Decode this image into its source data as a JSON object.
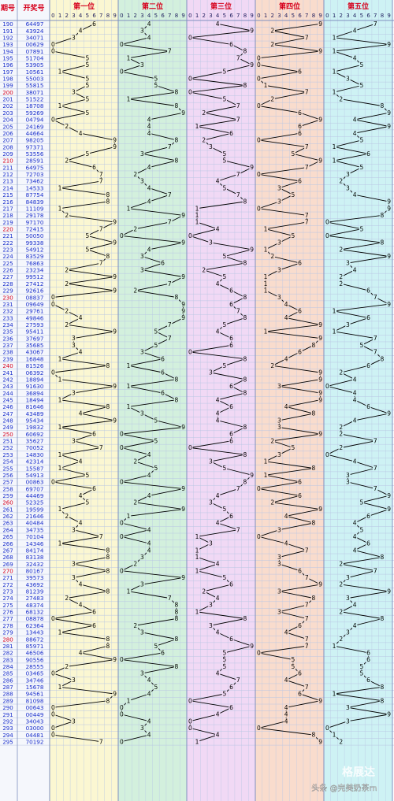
{
  "header": {
    "issue_label": "期号",
    "draw_label": "开奖号",
    "position_titles": [
      "第一位",
      "第二位",
      "第三位",
      "第四位",
      "第五位"
    ]
  },
  "watermark": {
    "logo_text": "格展达",
    "credit": "头条 @完美奶茶rn"
  },
  "colors": {
    "panel_backgrounds": [
      "#fbf7d2",
      "#d3f0dd",
      "#f1d9f5",
      "#f9dccd",
      "#cef2f4"
    ],
    "issue_text": "#1a2fcc",
    "issue_highlight": "#d6001c",
    "header_text": "#d6001c",
    "grid_line": "#b9c6e4",
    "separator": "#8090c0",
    "polyline": "#000000"
  },
  "chart_data": {
    "type": "line",
    "digit_ticks": [
      "0",
      "1",
      "2",
      "3",
      "4",
      "5",
      "6",
      "7",
      "8",
      "9"
    ],
    "highlighted_issues": [
      200,
      210,
      220,
      230,
      240,
      250,
      260,
      270,
      280
    ],
    "rows": [
      {
        "issue": 190,
        "draw": "64497"
      },
      {
        "issue": 191,
        "draw": "43924"
      },
      {
        "issue": 192,
        "draw": "34071"
      },
      {
        "issue": 193,
        "draw": "00629"
      },
      {
        "issue": 194,
        "draw": "07891"
      },
      {
        "issue": 195,
        "draw": "51704"
      },
      {
        "issue": 196,
        "draw": "53905"
      },
      {
        "issue": 197,
        "draw": "10561"
      },
      {
        "issue": 198,
        "draw": "55003"
      },
      {
        "issue": 199,
        "draw": "55815"
      },
      {
        "issue": 200,
        "draw": "38071"
      },
      {
        "issue": 201,
        "draw": "51522"
      },
      {
        "issue": 202,
        "draw": "18708"
      },
      {
        "issue": 203,
        "draw": "59269"
      },
      {
        "issue": 204,
        "draw": "04794"
      },
      {
        "issue": 205,
        "draw": "24169"
      },
      {
        "issue": 206,
        "draw": "44664"
      },
      {
        "issue": 207,
        "draw": "98205"
      },
      {
        "issue": 208,
        "draw": "97371"
      },
      {
        "issue": 209,
        "draw": "53556"
      },
      {
        "issue": 210,
        "draw": "28591"
      },
      {
        "issue": 211,
        "draw": "64975"
      },
      {
        "issue": 212,
        "draw": "72703"
      },
      {
        "issue": 213,
        "draw": "73462"
      },
      {
        "issue": 214,
        "draw": "14533"
      },
      {
        "issue": 215,
        "draw": "87754"
      },
      {
        "issue": 216,
        "draw": "84839"
      },
      {
        "issue": 217,
        "draw": "11109"
      },
      {
        "issue": 218,
        "draw": "29178"
      },
      {
        "issue": 219,
        "draw": "97170"
      },
      {
        "issue": 220,
        "draw": "72415"
      },
      {
        "issue": 221,
        "draw": "50050"
      },
      {
        "issue": 222,
        "draw": "99338"
      },
      {
        "issue": 223,
        "draw": "54912"
      },
      {
        "issue": 224,
        "draw": "83529"
      },
      {
        "issue": 225,
        "draw": "76863"
      },
      {
        "issue": 226,
        "draw": "23234"
      },
      {
        "issue": 227,
        "draw": "99512"
      },
      {
        "issue": 228,
        "draw": "27412"
      },
      {
        "issue": 229,
        "draw": "92616"
      },
      {
        "issue": 230,
        "draw": "08837"
      },
      {
        "issue": 231,
        "draw": "09649"
      },
      {
        "issue": 232,
        "draw": "29761"
      },
      {
        "issue": 233,
        "draw": "49846"
      },
      {
        "issue": 234,
        "draw": "27593"
      },
      {
        "issue": 235,
        "draw": "95411"
      },
      {
        "issue": 236,
        "draw": "37697"
      },
      {
        "issue": 237,
        "draw": "35685"
      },
      {
        "issue": 238,
        "draw": "43067"
      },
      {
        "issue": 239,
        "draw": "16848"
      },
      {
        "issue": 240,
        "draw": "81526"
      },
      {
        "issue": 241,
        "draw": "06392"
      },
      {
        "issue": 242,
        "draw": "18894"
      },
      {
        "issue": 243,
        "draw": "91630"
      },
      {
        "issue": 244,
        "draw": "36894"
      },
      {
        "issue": 245,
        "draw": "18494"
      },
      {
        "issue": 246,
        "draw": "81646"
      },
      {
        "issue": 247,
        "draw": "43489"
      },
      {
        "issue": 248,
        "draw": "95434"
      },
      {
        "issue": 249,
        "draw": "19832"
      },
      {
        "issue": 250,
        "draw": "60692"
      },
      {
        "issue": 251,
        "draw": "35627"
      },
      {
        "issue": 252,
        "draw": "70052"
      },
      {
        "issue": 253,
        "draw": "14830"
      },
      {
        "issue": 254,
        "draw": "42314"
      },
      {
        "issue": 255,
        "draw": "15587"
      },
      {
        "issue": 256,
        "draw": "54913"
      },
      {
        "issue": 257,
        "draw": "00863"
      },
      {
        "issue": 258,
        "draw": "69707"
      },
      {
        "issue": 259,
        "draw": "44469"
      },
      {
        "issue": 260,
        "draw": "52325"
      },
      {
        "issue": 261,
        "draw": "19599"
      },
      {
        "issue": 262,
        "draw": "21646"
      },
      {
        "issue": 263,
        "draw": "40484"
      },
      {
        "issue": 264,
        "draw": "34735"
      },
      {
        "issue": 265,
        "draw": "70104"
      },
      {
        "issue": 266,
        "draw": "14346"
      },
      {
        "issue": 267,
        "draw": "84174"
      },
      {
        "issue": 268,
        "draw": "83138"
      },
      {
        "issue": 269,
        "draw": "32432"
      },
      {
        "issue": 270,
        "draw": "80167"
      },
      {
        "issue": 271,
        "draw": "39573"
      },
      {
        "issue": 272,
        "draw": "43692"
      },
      {
        "issue": 273,
        "draw": "81239"
      },
      {
        "issue": 274,
        "draw": "27483"
      },
      {
        "issue": 275,
        "draw": "48374"
      },
      {
        "issue": 276,
        "draw": "68132"
      },
      {
        "issue": 277,
        "draw": "08878"
      },
      {
        "issue": 278,
        "draw": "62364"
      },
      {
        "issue": 279,
        "draw": "13443"
      },
      {
        "issue": 280,
        "draw": "88672"
      },
      {
        "issue": 281,
        "draw": "85971"
      },
      {
        "issue": 282,
        "draw": "46506"
      },
      {
        "issue": 283,
        "draw": "90556"
      },
      {
        "issue": 284,
        "draw": "28555"
      },
      {
        "issue": 285,
        "draw": "03465"
      },
      {
        "issue": 286,
        "draw": "34746"
      },
      {
        "issue": 287,
        "draw": "15678"
      },
      {
        "issue": 288,
        "draw": "94561"
      },
      {
        "issue": 289,
        "draw": "81098"
      },
      {
        "issue": 290,
        "draw": "00643"
      },
      {
        "issue": 291,
        "draw": "00449"
      },
      {
        "issue": 292,
        "draw": "34043"
      },
      {
        "issue": 293,
        "draw": "03000"
      },
      {
        "issue": 294,
        "draw": "04481"
      },
      {
        "issue": 295,
        "draw": "70192"
      }
    ]
  }
}
